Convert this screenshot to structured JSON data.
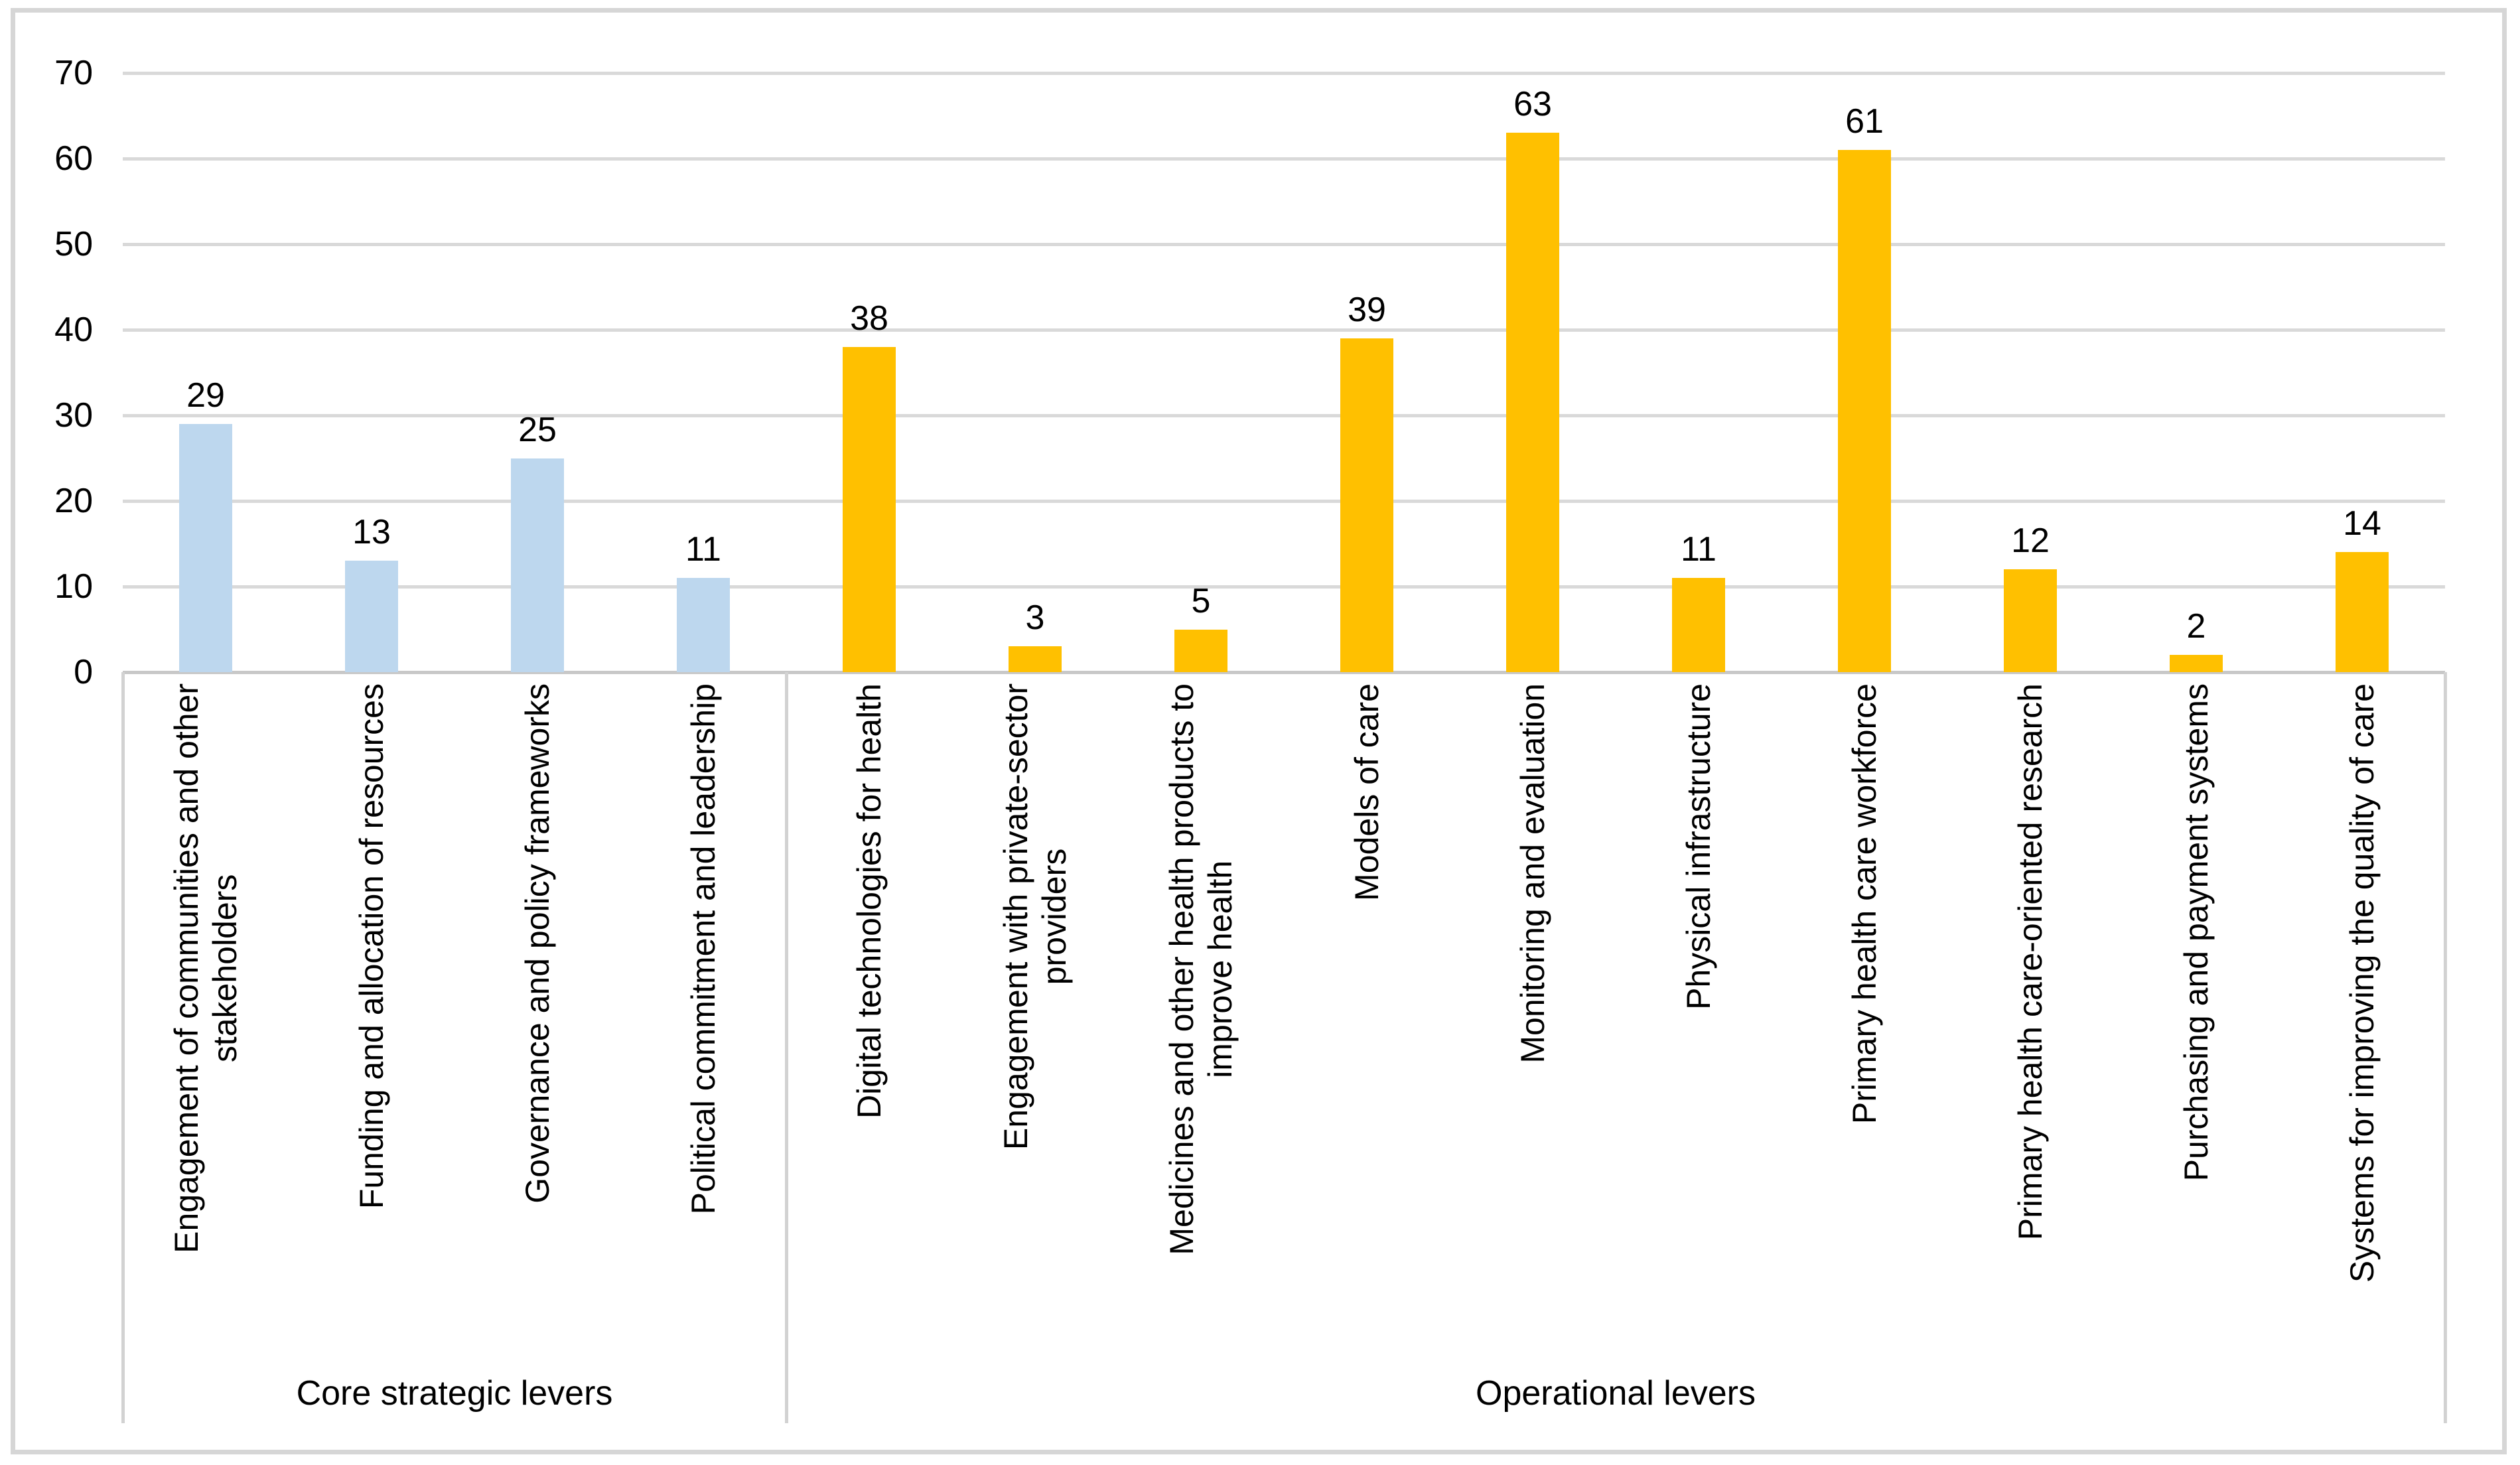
{
  "figure": {
    "background": "#FFFFFF",
    "border_color": "#D6D6D6"
  },
  "chart_data": {
    "type": "bar",
    "title": "",
    "xlabel": "",
    "ylabel": "",
    "ylim": [
      0,
      70
    ],
    "yticks": [
      0,
      10,
      20,
      30,
      40,
      50,
      60,
      70
    ],
    "grid": true,
    "legend": "none",
    "colors": {
      "gridline": "#D9D9D9",
      "axis_line": "#C8C8C8",
      "label_box_line": "#D2D2D2",
      "text": "#000000"
    },
    "groups": [
      {
        "label": "Core strategic levers",
        "bar_color": "#BDD7EE",
        "categories": [
          "Engagement of communities and other\nstakeholders",
          "Funding and allocation of resources",
          "Governance and policy frameworks",
          "Political commitment and leadership"
        ],
        "values": [
          29,
          13,
          25,
          11
        ]
      },
      {
        "label": "Operational levers",
        "bar_color": "#FFC000",
        "categories": [
          "Digital technologies for health",
          "Engagement with private-sector\nproviders",
          "Medicines and other health products to\nimprove health",
          "Models of care",
          "Monitoring and evaluation",
          "Physical infrastructure",
          "Primary health care workforce",
          "Primary health care-oriented research",
          "Purchasing and payment systems",
          "Systems for improving the quality of care"
        ],
        "values": [
          38,
          3,
          5,
          39,
          63,
          11,
          61,
          12,
          2,
          14
        ]
      }
    ]
  }
}
